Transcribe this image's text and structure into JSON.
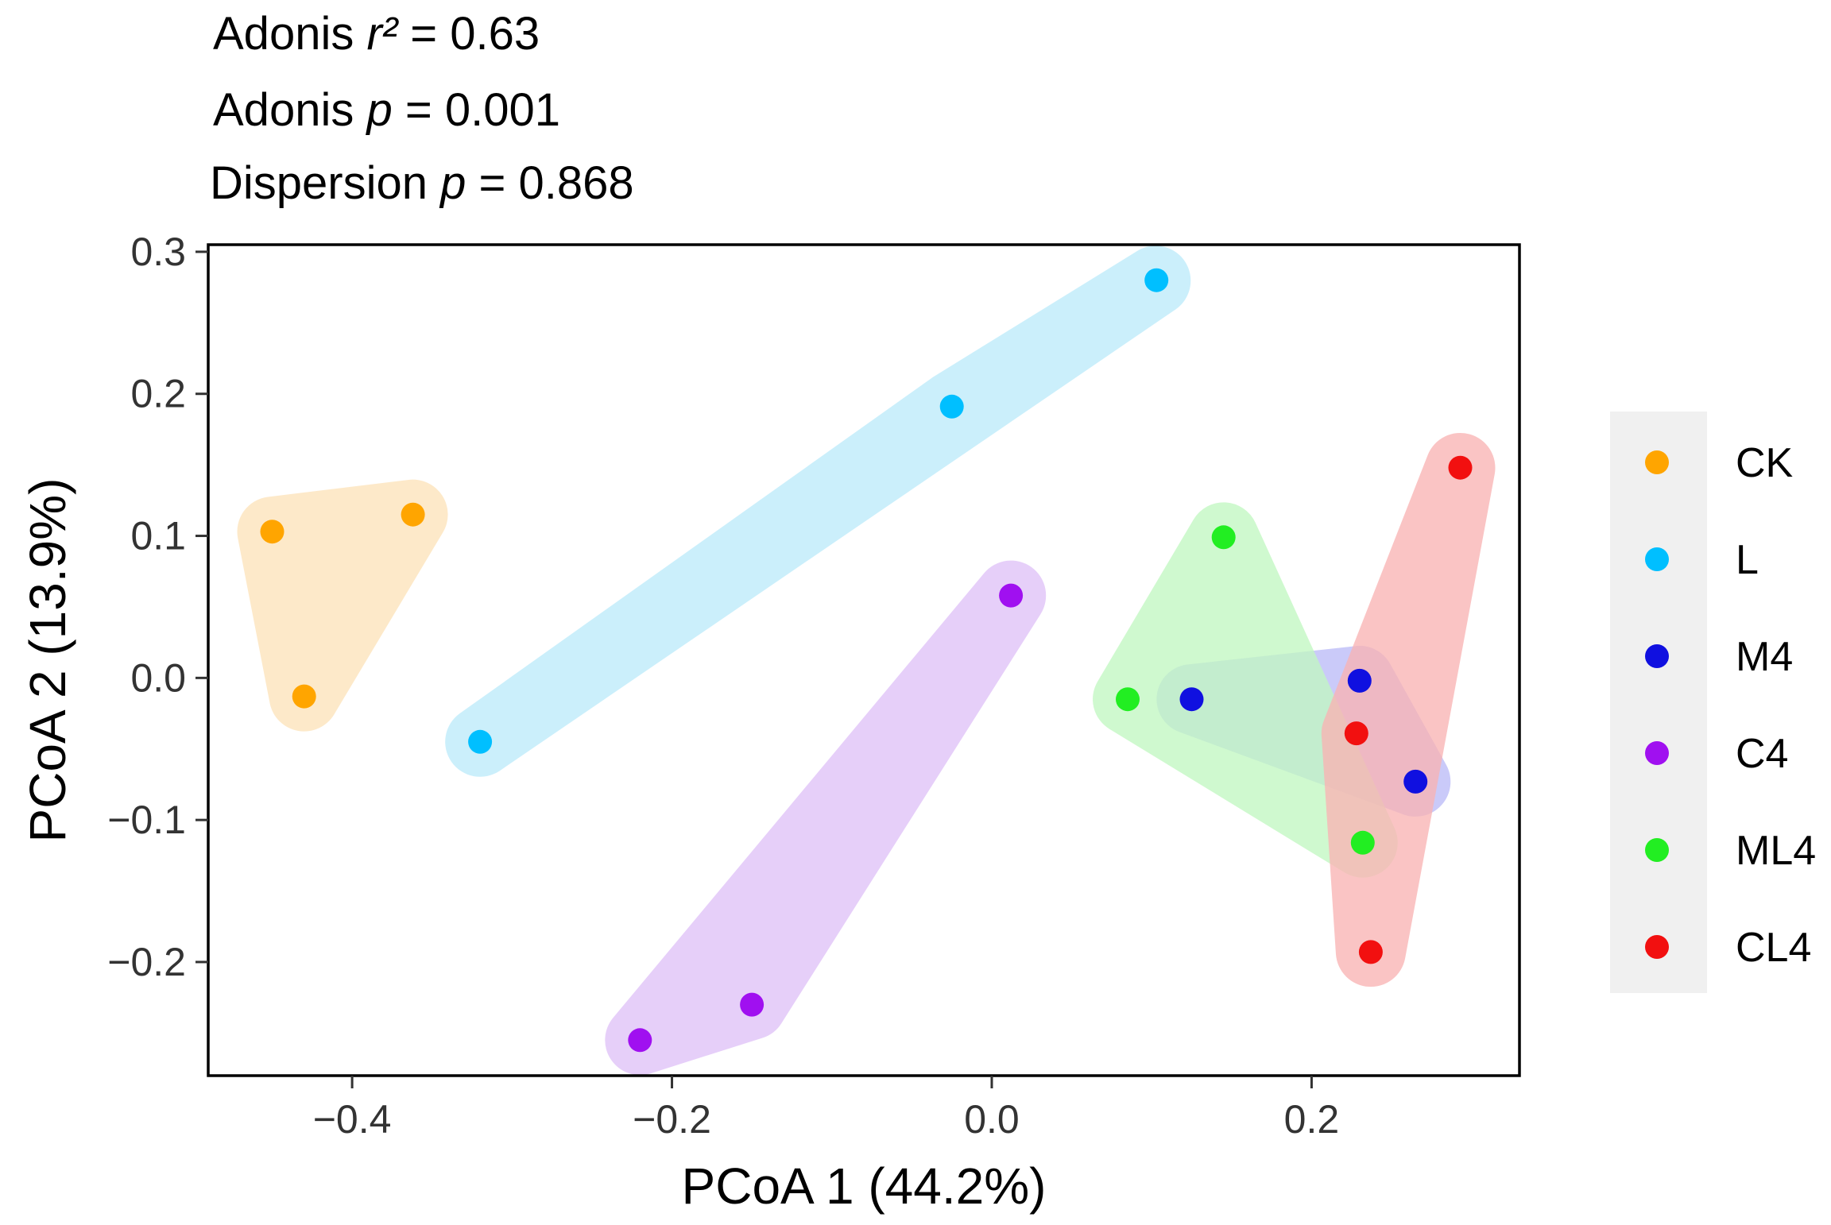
{
  "chart_data": {
    "type": "scatter",
    "stats": [
      {
        "prefix": "Adonis ",
        "symbol": "r²",
        "value": " = 0.63"
      },
      {
        "prefix": "Adonis ",
        "symbol": "p",
        "value": " = 0.001"
      },
      {
        "prefix": "Dispersion ",
        "symbol": "p",
        "value": " = 0.868"
      }
    ],
    "xlabel": "PCoA 1 (44.2%)",
    "ylabel": "PCoA 2 (13.9%)",
    "xlim": [
      -0.49,
      0.33
    ],
    "ylim": [
      -0.28,
      0.305
    ],
    "xticks": [
      -0.4,
      -0.2,
      0.0,
      0.2
    ],
    "xtick_labels": [
      "−0.4",
      "−0.2",
      "0.0",
      "0.2"
    ],
    "yticks": [
      -0.2,
      -0.1,
      0.0,
      0.1,
      0.2,
      0.3
    ],
    "ytick_labels": [
      "−0.2",
      "−0.1",
      "0.0",
      "0.1",
      "0.2",
      "0.3"
    ],
    "legend_position": "right",
    "series": [
      {
        "name": "CK",
        "color": "#FFA500",
        "hull_color": "#FCE3BA",
        "points": [
          [
            -0.45,
            0.103
          ],
          [
            -0.362,
            0.115
          ],
          [
            -0.43,
            -0.013
          ]
        ]
      },
      {
        "name": "L",
        "color": "#00BFFF",
        "hull_color": "#BDEBFA",
        "points": [
          [
            0.103,
            0.28
          ],
          [
            -0.025,
            0.191
          ],
          [
            -0.32,
            -0.045
          ]
        ]
      },
      {
        "name": "M4",
        "color": "#1010E0",
        "hull_color": "#BBBBF7",
        "points": [
          [
            0.125,
            -0.015
          ],
          [
            0.23,
            -0.002
          ],
          [
            0.265,
            -0.073
          ]
        ]
      },
      {
        "name": "C4",
        "color": "#A010F0",
        "hull_color": "#DFC2F7",
        "points": [
          [
            0.012,
            0.058
          ],
          [
            -0.15,
            -0.23
          ],
          [
            -0.22,
            -0.255
          ]
        ]
      },
      {
        "name": "ML4",
        "color": "#22EE22",
        "hull_color": "#C2F7C2",
        "points": [
          [
            0.085,
            -0.015
          ],
          [
            0.145,
            0.099
          ],
          [
            0.232,
            -0.116
          ]
        ]
      },
      {
        "name": "CL4",
        "color": "#F21010",
        "hull_color": "#F8B4B4",
        "points": [
          [
            0.293,
            0.148
          ],
          [
            0.228,
            -0.039
          ],
          [
            0.237,
            -0.193
          ]
        ]
      }
    ]
  }
}
